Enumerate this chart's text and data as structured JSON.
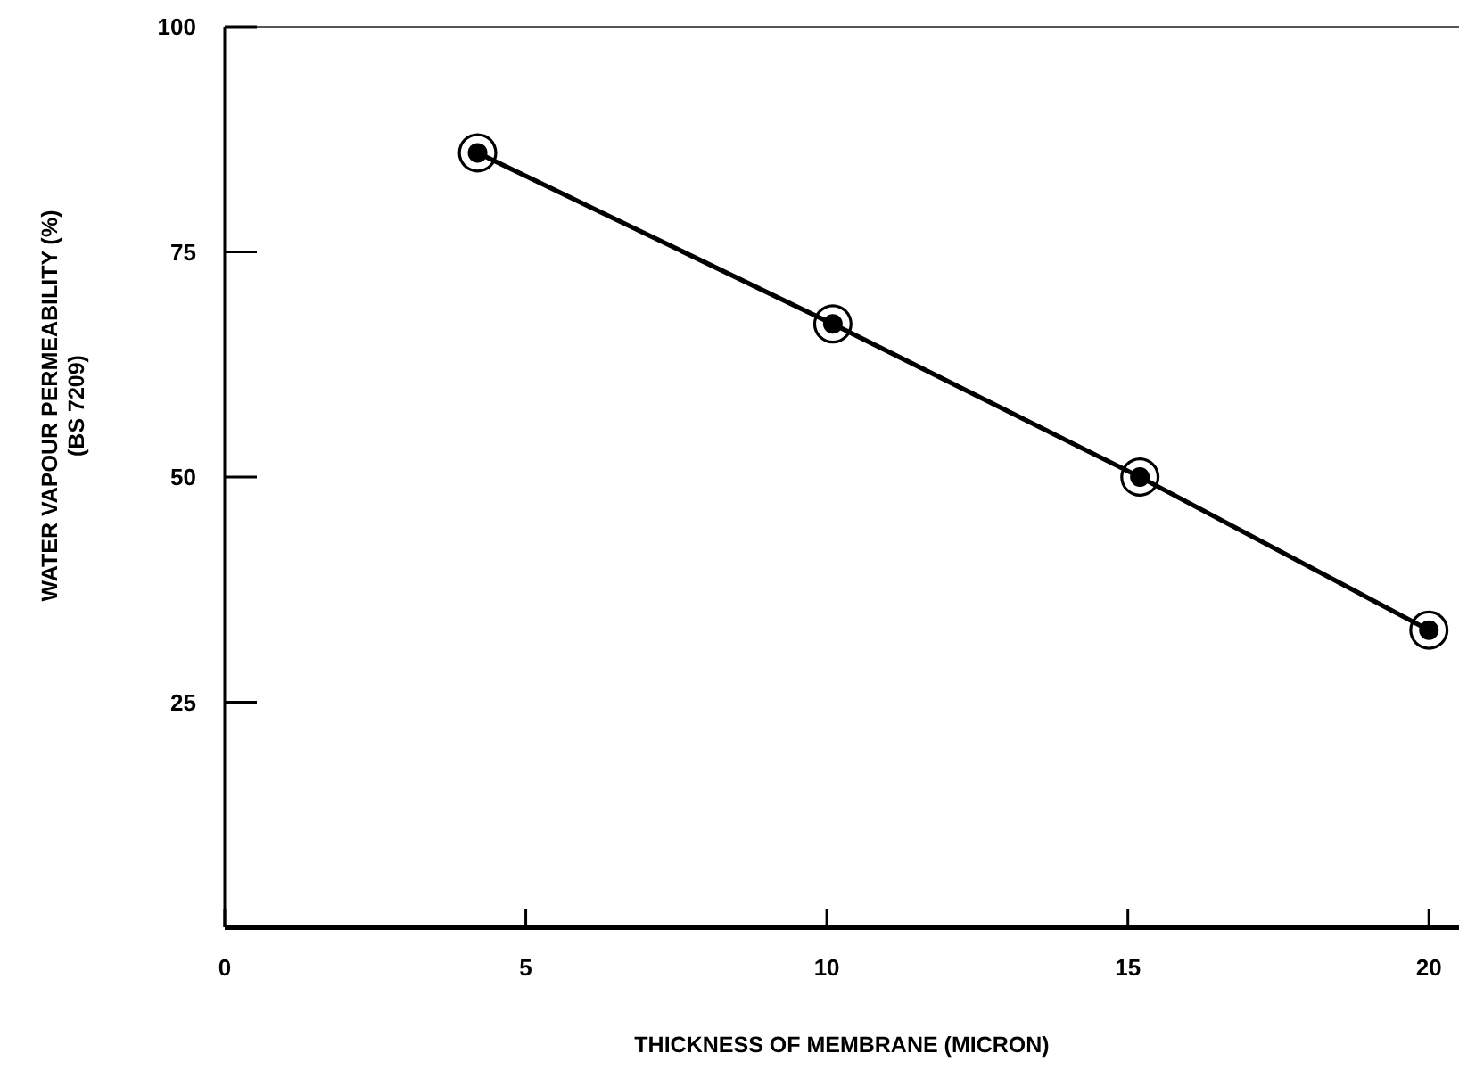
{
  "chart_data": {
    "type": "line",
    "xlabel": "THICKNESS OF MEMBRANE (MICRON)",
    "ylabel": "WATER VAPOUR PERMEABILITY (%)\n(BS 7209)",
    "x": [
      4.2,
      10.1,
      15.2,
      20
    ],
    "series": [
      {
        "color": "#000000",
        "values": [
          86,
          67,
          50,
          33
        ]
      }
    ],
    "xlim": [
      0,
      20.5
    ],
    "xticks": [
      0,
      5,
      10,
      15,
      20
    ],
    "ylim": [
      0,
      100
    ],
    "yticks": [
      25,
      50,
      75,
      100
    ],
    "grid": false,
    "marker": "circle",
    "line_style": "solid"
  }
}
